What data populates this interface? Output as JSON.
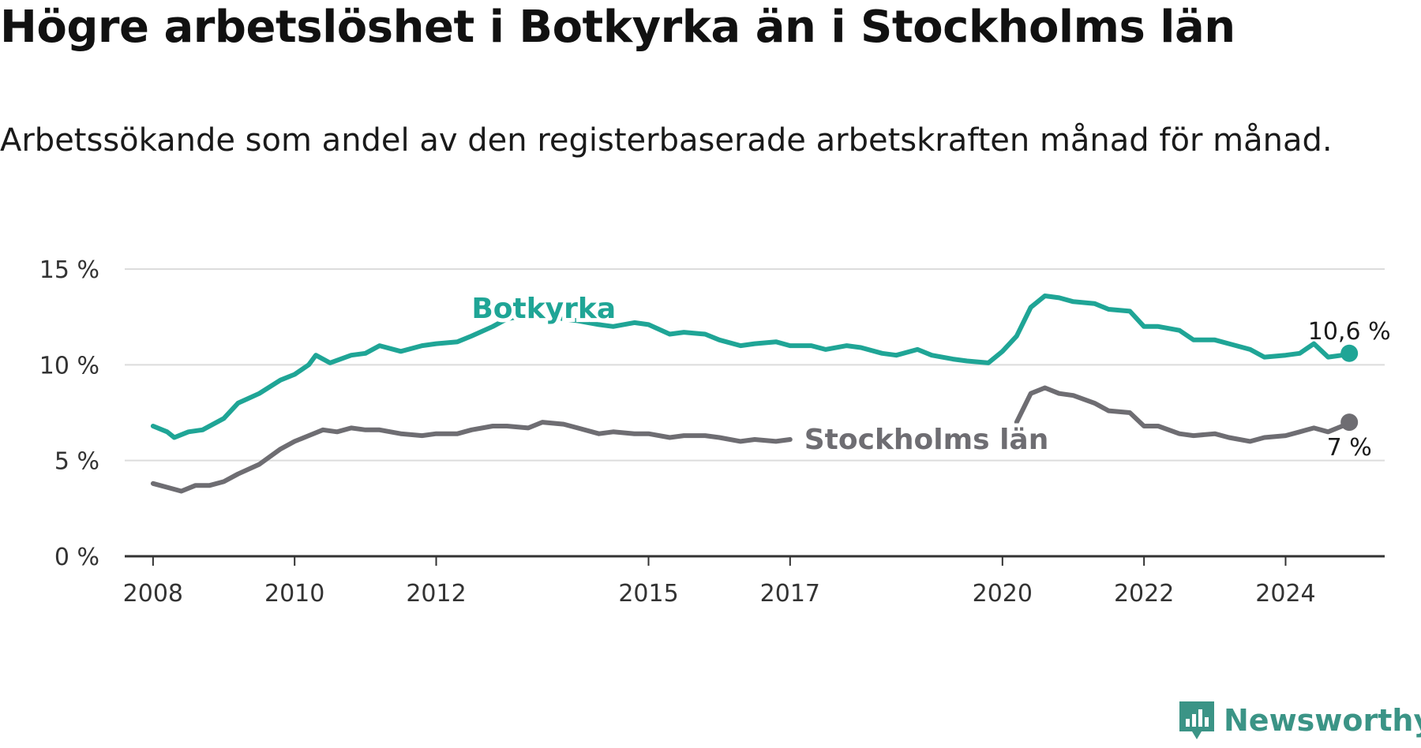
{
  "header": {
    "title": "Högre arbetslöshet i Botkyrka än i Stockholms län",
    "subtitle": "Arbetssökande som andel av den registerbaserade arbetskraften månad för månad."
  },
  "logo": {
    "icon": "bar-chart-speech-bubble-icon",
    "text": "Newsworthy",
    "color": "#3b9486"
  },
  "chart_data": {
    "type": "line",
    "title": "Högre arbetslöshet i Botkyrka än i Stockholms län",
    "subtitle": "Arbetssökande som andel av den registerbaserade arbetskraften månad för månad.",
    "xlabel": "",
    "ylabel": "",
    "xlim": [
      2007.6,
      2025.4
    ],
    "ylim": [
      0,
      15
    ],
    "grid": true,
    "x_ticks": [
      2008,
      2010,
      2012,
      2015,
      2017,
      2020,
      2022,
      2024
    ],
    "x_tick_labels": [
      "2008",
      "2010",
      "2012",
      "2015",
      "2017",
      "2020",
      "2022",
      "2024"
    ],
    "y_ticks": [
      0,
      5,
      10,
      15
    ],
    "y_tick_labels": [
      "0 %",
      "5 %",
      "10 %",
      "15 %"
    ],
    "series": [
      {
        "name": "Botkyrka",
        "color": "#1fa596",
        "label_position": "above line near 2013",
        "end_label": "10,6 %",
        "points": [
          [
            2008.0,
            6.8
          ],
          [
            2008.2,
            6.5
          ],
          [
            2008.3,
            6.2
          ],
          [
            2008.5,
            6.5
          ],
          [
            2008.7,
            6.6
          ],
          [
            2009.0,
            7.2
          ],
          [
            2009.2,
            8.0
          ],
          [
            2009.5,
            8.5
          ],
          [
            2009.8,
            9.2
          ],
          [
            2010.0,
            9.5
          ],
          [
            2010.2,
            10.0
          ],
          [
            2010.3,
            10.5
          ],
          [
            2010.5,
            10.1
          ],
          [
            2010.8,
            10.5
          ],
          [
            2011.0,
            10.6
          ],
          [
            2011.2,
            11.0
          ],
          [
            2011.5,
            10.7
          ],
          [
            2011.8,
            11.0
          ],
          [
            2012.0,
            11.1
          ],
          [
            2012.3,
            11.2
          ],
          [
            2012.5,
            11.5
          ],
          [
            2012.8,
            12.0
          ],
          [
            2013.0,
            12.4
          ],
          [
            2013.3,
            12.6
          ],
          [
            2013.5,
            12.6
          ],
          [
            2013.8,
            12.4
          ],
          [
            2014.0,
            12.3
          ],
          [
            2014.3,
            12.1
          ],
          [
            2014.5,
            12.0
          ],
          [
            2014.8,
            12.2
          ],
          [
            2015.0,
            12.1
          ],
          [
            2015.3,
            11.6
          ],
          [
            2015.5,
            11.7
          ],
          [
            2015.8,
            11.6
          ],
          [
            2016.0,
            11.3
          ],
          [
            2016.3,
            11.0
          ],
          [
            2016.5,
            11.1
          ],
          [
            2016.8,
            11.2
          ],
          [
            2017.0,
            11.0
          ],
          [
            2017.3,
            11.0
          ],
          [
            2017.5,
            10.8
          ],
          [
            2017.8,
            11.0
          ],
          [
            2018.0,
            10.9
          ],
          [
            2018.3,
            10.6
          ],
          [
            2018.5,
            10.5
          ],
          [
            2018.8,
            10.8
          ],
          [
            2019.0,
            10.5
          ],
          [
            2019.3,
            10.3
          ],
          [
            2019.5,
            10.2
          ],
          [
            2019.8,
            10.1
          ],
          [
            2020.0,
            10.7
          ],
          [
            2020.2,
            11.5
          ],
          [
            2020.4,
            13.0
          ],
          [
            2020.6,
            13.6
          ],
          [
            2020.8,
            13.5
          ],
          [
            2021.0,
            13.3
          ],
          [
            2021.3,
            13.2
          ],
          [
            2021.5,
            12.9
          ],
          [
            2021.8,
            12.8
          ],
          [
            2022.0,
            12.0
          ],
          [
            2022.2,
            12.0
          ],
          [
            2022.5,
            11.8
          ],
          [
            2022.7,
            11.3
          ],
          [
            2023.0,
            11.3
          ],
          [
            2023.2,
            11.1
          ],
          [
            2023.5,
            10.8
          ],
          [
            2023.7,
            10.4
          ],
          [
            2024.0,
            10.5
          ],
          [
            2024.2,
            10.6
          ],
          [
            2024.4,
            11.1
          ],
          [
            2024.6,
            10.4
          ],
          [
            2024.8,
            10.5
          ],
          [
            2024.9,
            10.6
          ]
        ]
      },
      {
        "name": "Stockholms län",
        "color": "#6e6d72",
        "label_position": "right of line near 2017",
        "end_label": "7 %",
        "points": [
          [
            2008.0,
            3.8
          ],
          [
            2008.2,
            3.6
          ],
          [
            2008.4,
            3.4
          ],
          [
            2008.6,
            3.7
          ],
          [
            2008.8,
            3.7
          ],
          [
            2009.0,
            3.9
          ],
          [
            2009.2,
            4.3
          ],
          [
            2009.5,
            4.8
          ],
          [
            2009.8,
            5.6
          ],
          [
            2010.0,
            6.0
          ],
          [
            2010.2,
            6.3
          ],
          [
            2010.4,
            6.6
          ],
          [
            2010.6,
            6.5
          ],
          [
            2010.8,
            6.7
          ],
          [
            2011.0,
            6.6
          ],
          [
            2011.2,
            6.6
          ],
          [
            2011.5,
            6.4
          ],
          [
            2011.8,
            6.3
          ],
          [
            2012.0,
            6.4
          ],
          [
            2012.3,
            6.4
          ],
          [
            2012.5,
            6.6
          ],
          [
            2012.8,
            6.8
          ],
          [
            2013.0,
            6.8
          ],
          [
            2013.3,
            6.7
          ],
          [
            2013.5,
            7.0
          ],
          [
            2013.8,
            6.9
          ],
          [
            2014.0,
            6.7
          ],
          [
            2014.3,
            6.4
          ],
          [
            2014.5,
            6.5
          ],
          [
            2014.8,
            6.4
          ],
          [
            2015.0,
            6.4
          ],
          [
            2015.3,
            6.2
          ],
          [
            2015.5,
            6.3
          ],
          [
            2015.8,
            6.3
          ],
          [
            2016.0,
            6.2
          ],
          [
            2016.3,
            6.0
          ],
          [
            2016.5,
            6.1
          ],
          [
            2016.8,
            6.0
          ],
          [
            2017.0,
            6.1
          ]
        ],
        "points_after_gap": [
          [
            2020.2,
            7.0
          ],
          [
            2020.4,
            8.5
          ],
          [
            2020.6,
            8.8
          ],
          [
            2020.8,
            8.5
          ],
          [
            2021.0,
            8.4
          ],
          [
            2021.3,
            8.0
          ],
          [
            2021.5,
            7.6
          ],
          [
            2021.8,
            7.5
          ],
          [
            2022.0,
            6.8
          ],
          [
            2022.2,
            6.8
          ],
          [
            2022.5,
            6.4
          ],
          [
            2022.7,
            6.3
          ],
          [
            2023.0,
            6.4
          ],
          [
            2023.2,
            6.2
          ],
          [
            2023.5,
            6.0
          ],
          [
            2023.7,
            6.2
          ],
          [
            2024.0,
            6.3
          ],
          [
            2024.2,
            6.5
          ],
          [
            2024.4,
            6.7
          ],
          [
            2024.6,
            6.5
          ],
          [
            2024.8,
            6.8
          ],
          [
            2024.9,
            7.0
          ]
        ]
      }
    ]
  }
}
